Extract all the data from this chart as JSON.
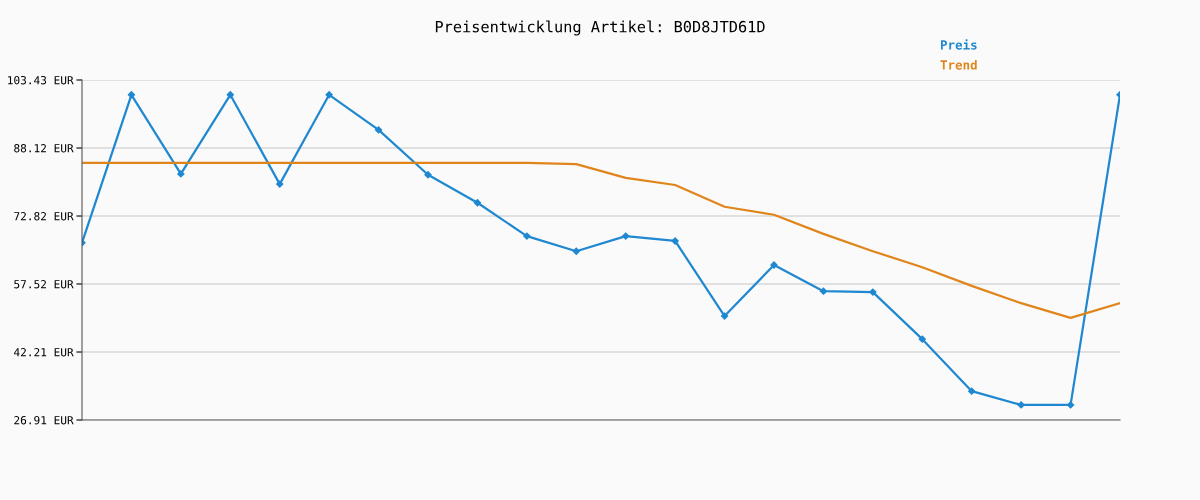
{
  "chart_data": {
    "type": "line",
    "title": "Preisentwicklung Artikel: B0D8JTD61D",
    "categories": [
      null,
      null,
      null,
      null,
      null,
      null,
      null,
      null,
      null,
      null,
      null,
      null,
      null,
      null,
      null,
      null,
      null,
      null,
      null,
      null,
      null,
      null
    ],
    "series": [
      {
        "name": "Preis",
        "color": "#1f88d0",
        "marker": "diamond",
        "values": [
          66.8,
          100.1,
          82.3,
          100.1,
          80.0,
          100.1,
          92.2,
          82.1,
          75.8,
          68.3,
          64.9,
          68.3,
          67.2,
          50.3,
          61.8,
          55.9,
          55.7,
          45.1,
          33.4,
          30.3,
          30.3,
          100.1
        ]
      },
      {
        "name": "Trend",
        "color": "#e0851c",
        "marker": "none",
        "values": [
          84.8,
          84.8,
          84.8,
          84.8,
          84.8,
          84.8,
          84.8,
          84.8,
          84.8,
          84.8,
          84.5,
          81.4,
          79.8,
          74.9,
          73.1,
          68.8,
          64.9,
          61.3,
          57.1,
          53.2,
          49.9,
          53.2
        ]
      }
    ],
    "ylim": [
      26.91,
      103.43
    ],
    "yticks": [
      {
        "value": 26.91,
        "label": "26.91 EUR"
      },
      {
        "value": 42.21,
        "label": "42.21 EUR"
      },
      {
        "value": 57.52,
        "label": "57.52 EUR"
      },
      {
        "value": 72.82,
        "label": "72.82 EUR"
      },
      {
        "value": 88.12,
        "label": "88.12 EUR"
      },
      {
        "value": 103.43,
        "label": "103.43 EUR"
      }
    ],
    "grid": "y",
    "legend": "top right",
    "line_style": "solid"
  }
}
